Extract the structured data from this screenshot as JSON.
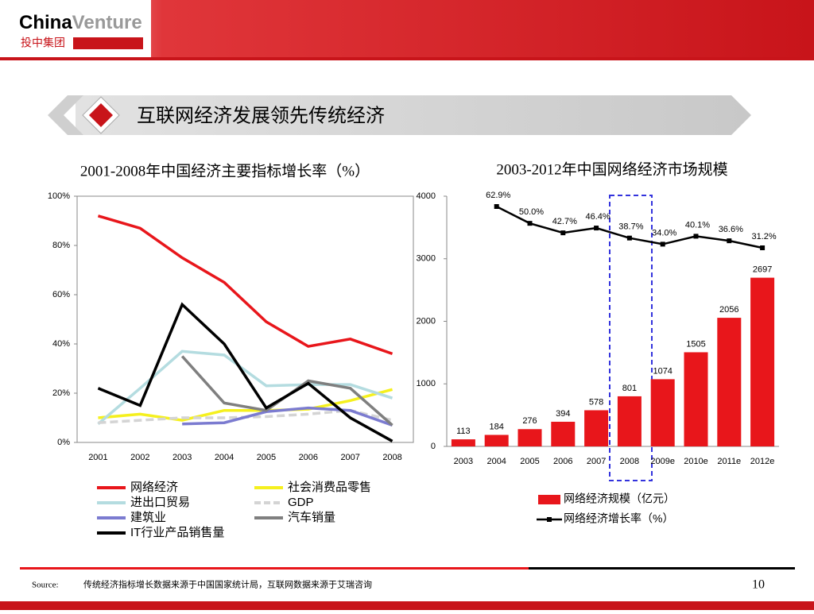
{
  "header": {
    "brand_a": "China",
    "brand_b": "Venture",
    "brand_cn": "投中集团",
    "title": "互联网经济发展领先传统经济"
  },
  "chart_data": [
    {
      "type": "line",
      "title": "2001-2008年中国经济主要指标增长率（%）",
      "categories": [
        "2001",
        "2002",
        "2003",
        "2004",
        "2005",
        "2006",
        "2007",
        "2008"
      ],
      "ylim": [
        0,
        100
      ],
      "yticks": [
        {
          "value": 0,
          "label": "0%"
        },
        {
          "value": 20,
          "label": "20%"
        },
        {
          "value": 40,
          "label": "40%"
        },
        {
          "value": 60,
          "label": "60%"
        },
        {
          "value": 80,
          "label": "80%"
        },
        {
          "value": 100,
          "label": "100%"
        }
      ],
      "series": [
        {
          "name": "网络经济",
          "color": "#e8161b",
          "values": [
            92,
            87,
            75,
            65,
            49,
            39,
            42,
            36
          ]
        },
        {
          "name": "社会消费品零售",
          "color": "#f5f01e",
          "values": [
            10,
            11.5,
            9,
            13,
            13,
            13.5,
            17,
            21.5
          ]
        },
        {
          "name": "进出口贸易",
          "color": "#b4dce0",
          "values": [
            7.5,
            22,
            37,
            35.5,
            23,
            23.5,
            23.5,
            18
          ]
        },
        {
          "name": "GDP",
          "color": "#d4d4d4",
          "dashed": true,
          "values": [
            8,
            9,
            10,
            10,
            10.5,
            11.5,
            13,
            9
          ]
        },
        {
          "name": "建筑业",
          "color": "#7b7bd0",
          "values": [
            null,
            null,
            7.5,
            8,
            12.5,
            14,
            13,
            7
          ]
        },
        {
          "name": "汽车销量",
          "color": "#7f7f7f",
          "values": [
            null,
            null,
            35,
            16,
            13,
            25,
            22,
            7
          ]
        },
        {
          "name": "IT行业产品销售量",
          "color": "#000000",
          "values": [
            22,
            15,
            56,
            40,
            14,
            24,
            10,
            0.5
          ]
        }
      ]
    },
    {
      "type": "bar_line",
      "title": "2003-2012年中国网络经济市场规模",
      "categories": [
        "2003",
        "2004",
        "2005",
        "2006",
        "2007",
        "2008",
        "2009e",
        "2010e",
        "2011e",
        "2012e"
      ],
      "ylim": [
        0,
        4000
      ],
      "yticks": [
        0,
        1000,
        2000,
        3000,
        4000
      ],
      "series": [
        {
          "name": "网络经济规模（亿元）",
          "type": "bar",
          "color": "#e8161b",
          "values": [
            113,
            184,
            276,
            394,
            578,
            801,
            1074,
            1505,
            2056,
            2697
          ]
        },
        {
          "name": "网络经济增长率（%）",
          "type": "line",
          "axis": "y2",
          "color": "#000000",
          "values": [
            null,
            62.9,
            50.0,
            42.7,
            46.4,
            38.7,
            34.0,
            40.1,
            36.6,
            31.2
          ],
          "value_labels": [
            null,
            "62.9%",
            "50.0%",
            "42.7%",
            "46.4%",
            "38.7%",
            "34.0%",
            "40.1%",
            "36.6%",
            "31.2%"
          ]
        }
      ]
    }
  ],
  "footer": {
    "source_label": "Source:",
    "source": "传统经济指标增长数据来源于中国国家统计局，互联网数据来源于艾瑞咨询",
    "page": "10"
  }
}
